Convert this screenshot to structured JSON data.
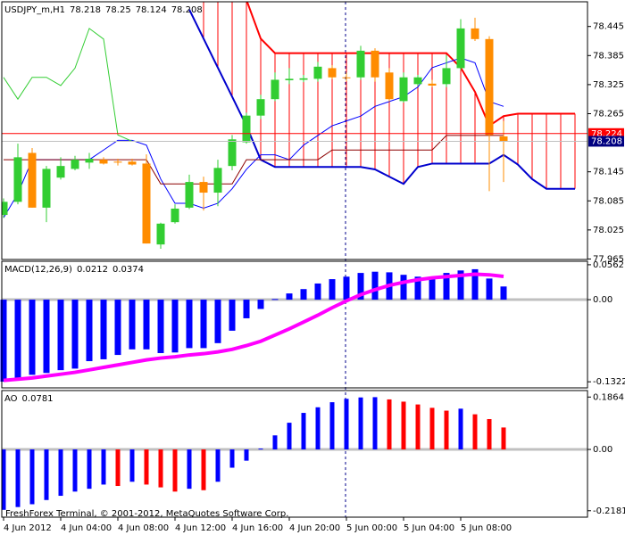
{
  "chart_data": [
    {
      "type": "candlestick",
      "title": "USDJPY_m,H1",
      "open": [
        78.056,
        78.083,
        78.184,
        78.071,
        78.133,
        78.151,
        78.164,
        78.17,
        78.166,
        78.166,
        78.162,
        77.995,
        78.041,
        78.071,
        78.124,
        78.102,
        78.157,
        78.206,
        78.261,
        78.295,
        78.334,
        78.335,
        78.337,
        78.359,
        78.34,
        78.34,
        78.395,
        78.35,
        78.291,
        78.326,
        78.327,
        78.326,
        78.359,
        78.441,
        78.419,
        78.218,
        null,
        null,
        null,
        null,
        null
      ],
      "high": [
        78.09,
        78.203,
        78.194,
        78.157,
        78.175,
        78.178,
        78.184,
        78.175,
        78.172,
        78.172,
        78.181,
        78.04,
        78.078,
        78.139,
        78.135,
        78.17,
        78.221,
        78.267,
        78.304,
        78.35,
        78.359,
        78.345,
        78.372,
        78.365,
        78.35,
        78.405,
        78.4,
        78.359,
        78.35,
        78.345,
        78.335,
        78.386,
        78.46,
        78.463,
        78.425,
        78.25,
        null,
        null,
        null,
        null,
        null
      ],
      "low": [
        78.05,
        78.078,
        78.071,
        78.041,
        78.129,
        78.148,
        78.151,
        78.16,
        78.158,
        78.158,
        77.997,
        77.986,
        78.038,
        78.068,
        78.065,
        78.074,
        78.148,
        78.203,
        78.254,
        78.291,
        78.326,
        78.33,
        78.331,
        78.336,
        78.332,
        78.335,
        78.331,
        78.29,
        78.288,
        78.322,
        78.32,
        78.32,
        78.355,
        78.415,
        78.105,
        78.124,
        null,
        null,
        null,
        null,
        null
      ],
      "close": [
        78.083,
        78.175,
        78.071,
        78.151,
        78.157,
        78.17,
        78.172,
        78.162,
        78.164,
        78.16,
        77.997,
        78.038,
        78.069,
        78.124,
        78.102,
        78.153,
        78.212,
        78.261,
        78.295,
        78.335,
        78.337,
        78.338,
        78.362,
        78.34,
        78.339,
        78.395,
        78.34,
        78.295,
        78.34,
        78.34,
        78.323,
        78.359,
        78.441,
        78.419,
        78.221,
        78.208,
        null,
        null,
        null,
        null,
        null
      ],
      "up_color": "#32cd32",
      "down_color": "#ff8c00",
      "cloud": {
        "color": "#ff0000",
        "series": [
          {
            "color": "#ff0000",
            "width": 2,
            "values": [
              null,
              null,
              null,
              null,
              null,
              null,
              null,
              null,
              null,
              null,
              null,
              null,
              null,
              null,
              78.6,
              78.57,
              78.54,
              78.5,
              78.42,
              78.39,
              78.39,
              78.39,
              78.39,
              78.39,
              78.39,
              78.39,
              78.39,
              78.39,
              78.39,
              78.39,
              78.39,
              78.39,
              78.36,
              78.31,
              78.24,
              78.26,
              78.265,
              78.265,
              78.265,
              78.265,
              78.265
            ]
          },
          {
            "color": "#0000cd",
            "width": 2,
            "values": [
              null,
              null,
              null,
              null,
              null,
              null,
              null,
              null,
              null,
              null,
              null,
              null,
              null,
              78.48,
              78.42,
              78.36,
              78.3,
              78.24,
              78.17,
              78.155,
              78.155,
              78.155,
              78.155,
              78.155,
              78.155,
              78.155,
              78.15,
              78.135,
              78.12,
              78.155,
              78.162,
              78.162,
              78.162,
              78.162,
              78.162,
              78.18,
              78.16,
              78.13,
              78.11,
              78.11,
              78.11
            ]
          }
        ]
      },
      "series": [
        {
          "color": "#0000ff",
          "width": 1,
          "values": [
            78.05,
            78.1,
            78.17,
            78.17,
            78.17,
            78.17,
            78.17,
            78.19,
            78.21,
            78.21,
            78.2,
            78.13,
            78.08,
            78.08,
            78.07,
            78.08,
            78.11,
            78.15,
            78.18,
            78.18,
            78.17,
            78.2,
            78.22,
            78.24,
            78.25,
            78.26,
            78.28,
            78.29,
            78.3,
            78.32,
            78.36,
            78.37,
            78.38,
            78.37,
            78.29,
            78.28,
            null,
            null,
            null,
            null,
            null
          ]
        },
        {
          "color": "#8b0000",
          "width": 1,
          "values": [
            78.17,
            78.17,
            78.17,
            78.17,
            78.17,
            78.17,
            78.17,
            78.17,
            78.17,
            78.17,
            78.17,
            78.12,
            78.12,
            78.12,
            78.12,
            78.12,
            78.12,
            78.17,
            78.17,
            78.17,
            78.17,
            78.17,
            78.17,
            78.19,
            78.19,
            78.19,
            78.19,
            78.19,
            78.19,
            78.19,
            78.19,
            78.22,
            78.22,
            78.22,
            78.22,
            78.22,
            null,
            null,
            null,
            null,
            null
          ]
        },
        {
          "color": "#32cd32",
          "width": 1,
          "values": [
            78.34,
            78.295,
            78.34,
            78.34,
            78.323,
            78.359,
            78.441,
            78.419,
            78.221,
            78.208,
            null,
            null,
            null,
            null,
            null,
            null,
            null,
            null,
            null,
            null,
            null,
            null,
            null,
            null,
            null,
            null,
            null,
            null,
            null,
            null,
            null,
            null,
            null,
            null,
            null,
            null,
            null,
            null,
            null,
            null,
            null
          ]
        }
      ],
      "price_lines": [
        {
          "value": 78.224,
          "color": "#ff0000",
          "label_color": "#ff0000"
        },
        {
          "value": 78.208,
          "color": "#c0c0c0",
          "label_color": "#000080"
        }
      ],
      "ylim": [
        77.964,
        78.496
      ],
      "yticks": [
        78.445,
        78.385,
        78.325,
        78.265,
        78.145,
        78.085,
        78.025,
        77.965
      ]
    },
    {
      "type": "bar",
      "title": "MACD(12,26,9)",
      "color": "#0000ff",
      "values": [
        -0.132,
        -0.128,
        -0.121,
        -0.118,
        -0.1135,
        -0.111,
        -0.099,
        -0.096,
        -0.089,
        -0.08,
        -0.08,
        -0.086,
        -0.085,
        -0.078,
        -0.078,
        -0.07,
        -0.05,
        -0.03,
        -0.015,
        0.001,
        0.01,
        0.017,
        0.026,
        0.033,
        0.037,
        0.043,
        0.045,
        0.044,
        0.04,
        0.037,
        0.037,
        0.043,
        0.047,
        0.049,
        0.034,
        0.0212,
        null,
        null,
        null,
        null,
        null
      ],
      "series": [
        {
          "color": "#ff00ff",
          "width": 4,
          "values": [
            -0.13,
            -0.128,
            -0.126,
            -0.123,
            -0.12,
            -0.117,
            -0.113,
            -0.109,
            -0.105,
            -0.101,
            -0.097,
            -0.094,
            -0.092,
            -0.089,
            -0.087,
            -0.084,
            -0.08,
            -0.074,
            -0.067,
            -0.057,
            -0.047,
            -0.036,
            -0.025,
            -0.013,
            -0.002,
            0.008,
            0.016,
            0.023,
            0.028,
            0.032,
            0.035,
            0.037,
            0.039,
            0.041,
            0.04,
            0.0374,
            null,
            null,
            null,
            null,
            null
          ]
        }
      ],
      "ylim": [
        -0.142,
        0.0618
      ],
      "yticks": [
        0.0562,
        {
          "value": 0,
          "label": "0.00"
        },
        -0.1322
      ]
    },
    {
      "type": "bar",
      "title": "AO",
      "up_color": "#0000ff",
      "down_color": "#ff0000",
      "values": [
        -0.215,
        -0.205,
        -0.195,
        -0.18,
        -0.165,
        -0.15,
        -0.14,
        -0.125,
        -0.13,
        -0.115,
        -0.125,
        -0.135,
        -0.15,
        -0.14,
        -0.145,
        -0.115,
        -0.065,
        -0.04,
        0.003,
        0.05,
        0.095,
        0.13,
        0.15,
        0.168,
        0.18,
        0.185,
        0.186,
        0.178,
        0.17,
        0.16,
        0.148,
        0.138,
        0.145,
        0.125,
        0.108,
        0.0781,
        null,
        null,
        null,
        null,
        null
      ],
      "ylim": [
        -0.241,
        0.2095
      ],
      "yticks": [
        0.1864,
        {
          "value": 0,
          "label": "0.00"
        },
        -0.2181
      ],
      "categories": [
        "4 Jun 2012",
        null,
        null,
        null,
        "4 Jun 04:00",
        null,
        null,
        null,
        "4 Jun 08:00",
        null,
        null,
        null,
        "4 Jun 12:00",
        null,
        null,
        null,
        "4 Jun 16:00",
        null,
        null,
        null,
        "4 Jun 20:00",
        null,
        null,
        null,
        "5 Jun 00:00",
        null,
        null,
        null,
        "5 Jun 04:00",
        null,
        null,
        null,
        "5 Jun 08:00",
        null,
        null,
        null,
        null,
        null,
        null,
        null,
        null
      ]
    }
  ],
  "footer": "FreshForex Terminal, © 2001-2012, MetaQuotes Software Corp."
}
